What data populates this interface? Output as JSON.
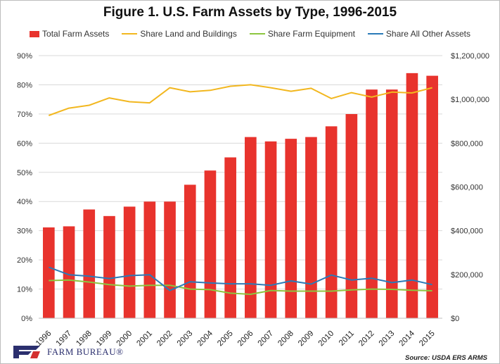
{
  "chart_data": {
    "type": "bar",
    "title": "Figure 1. U.S. Farm Assets by Type, 1996-2015",
    "categories": [
      "1996",
      "1997",
      "1998",
      "1999",
      "2000",
      "2001",
      "2002",
      "2003",
      "2004",
      "2005",
      "2006",
      "2007",
      "2008",
      "2009",
      "2010",
      "2011",
      "2012",
      "2013",
      "2014",
      "2015"
    ],
    "y_left": {
      "range": [
        0,
        90
      ],
      "ticks": [
        "0%",
        "10%",
        "20%",
        "30%",
        "40%",
        "50%",
        "60%",
        "70%",
        "80%",
        "90%"
      ]
    },
    "y_right": {
      "range": [
        0,
        1200000
      ],
      "ticks": [
        "$0",
        "$200,000",
        "$400,000",
        "$600,000",
        "$800,000",
        "$1,000,000",
        "$1,200,000"
      ]
    },
    "grid": "horizontal",
    "legend_position": "top",
    "series": [
      {
        "name": "Total Farm Assets",
        "type": "bar",
        "axis": "right",
        "color": "#e8332d",
        "values": [
          415000,
          420000,
          497000,
          467000,
          510000,
          533000,
          533000,
          610000,
          675000,
          735000,
          828000,
          808000,
          820000,
          828000,
          877000,
          933000,
          1045000,
          1045000,
          1120000,
          1108000
        ]
      },
      {
        "name": "Share Land and Buildings",
        "type": "line",
        "axis": "left",
        "color": "#f2b71f",
        "values": [
          69.5,
          72,
          73,
          75.5,
          74.2,
          73.8,
          79,
          77.6,
          78.1,
          79.5,
          80,
          79,
          77.8,
          78.8,
          75.3,
          77.3,
          75.8,
          77.5,
          77.2,
          79
        ]
      },
      {
        "name": "Share Farm Equipment",
        "type": "line",
        "axis": "left",
        "color": "#8cc63f",
        "values": [
          12.9,
          13.1,
          12.4,
          11.5,
          11,
          11.3,
          11.3,
          10,
          9.8,
          8.6,
          8.2,
          9.5,
          9.3,
          9.3,
          9.3,
          9.7,
          10,
          9.9,
          9.6,
          9.4
        ]
      },
      {
        "name": "Share All Other Assets",
        "type": "line",
        "axis": "left",
        "color": "#2a7ab8",
        "values": [
          17.5,
          14.9,
          14.4,
          13.6,
          14.6,
          14.9,
          9.5,
          12.5,
          12.1,
          11.8,
          11.8,
          11.3,
          12.8,
          11.7,
          14.8,
          13.1,
          13.7,
          12.2,
          13.1,
          11.5
        ]
      }
    ]
  },
  "source": "Source: USDA ERS ARMS",
  "logo_text": "FARM BUREAU®"
}
